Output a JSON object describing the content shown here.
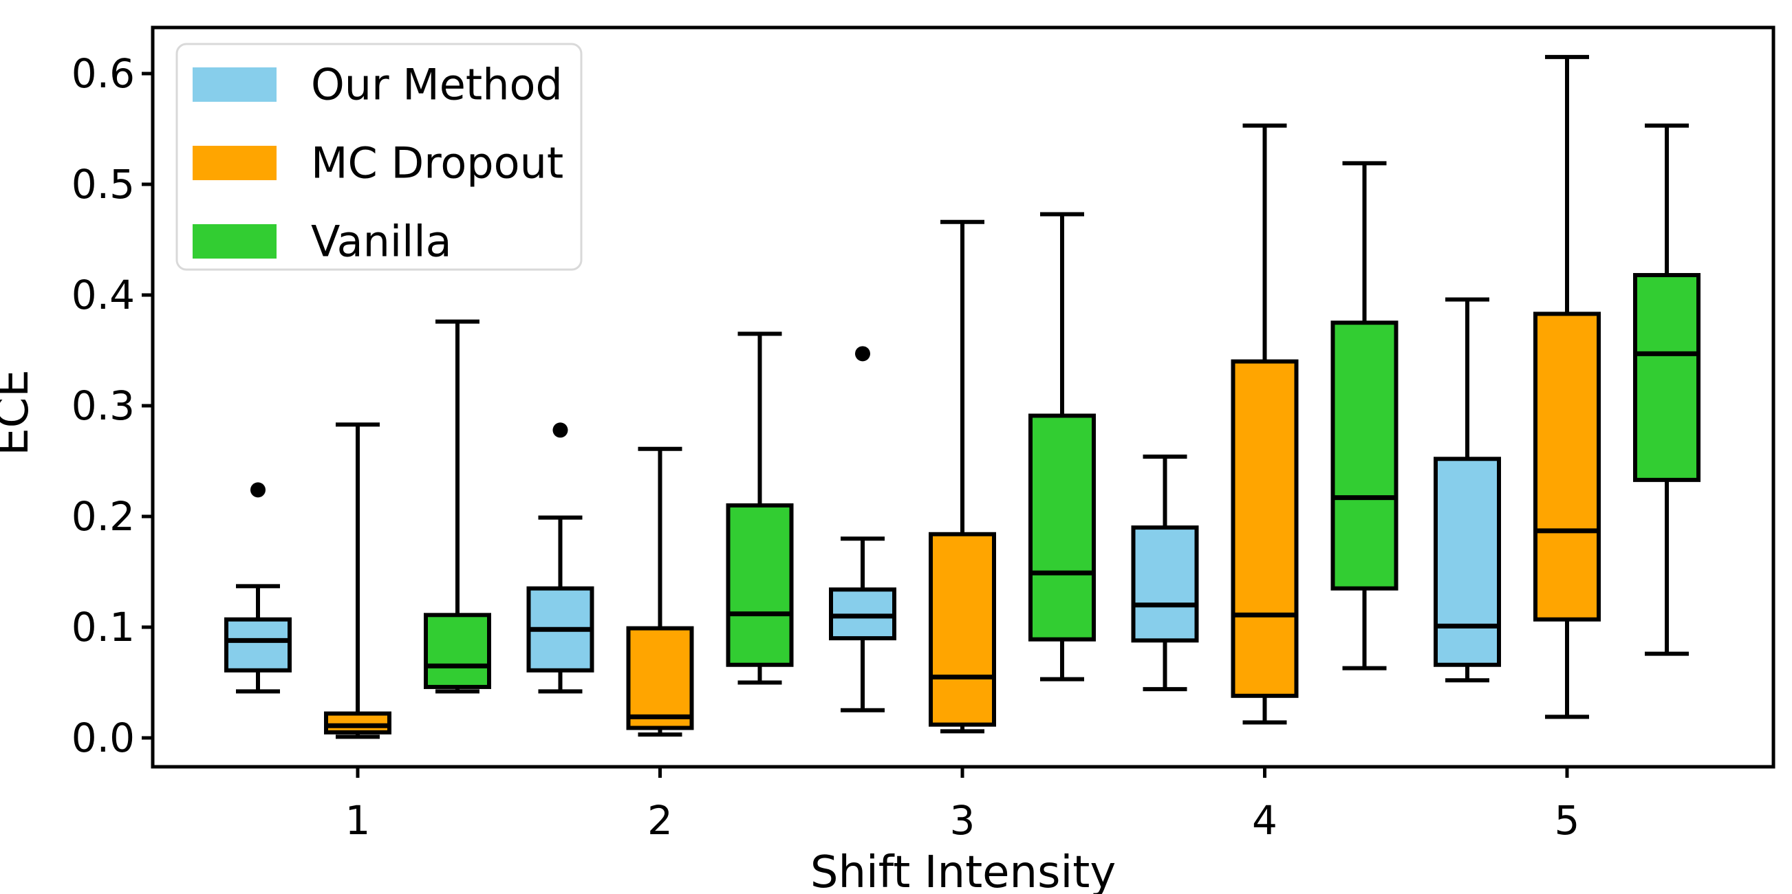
{
  "chart_data": {
    "type": "boxplot",
    "title": "",
    "xlabel": "Shift Intensity",
    "ylabel": "ECE",
    "categories": [
      "1",
      "2",
      "3",
      "4",
      "5"
    ],
    "yticks": [
      0.0,
      0.1,
      0.2,
      0.3,
      0.4,
      0.5,
      0.6
    ],
    "ytick_labels": [
      "0.0",
      "0.1",
      "0.2",
      "0.3",
      "0.4",
      "0.5",
      "0.6"
    ],
    "ylim": [
      -0.026,
      0.641
    ],
    "xlim_note": "5 groups, 3 boxes per group, boxes offset -0.33/0/+0.33 around each category",
    "grid": false,
    "legend_position": "upper left",
    "background_color": "#ffffff",
    "frame_color": "#000000",
    "series": [
      {
        "name": "Our Method",
        "color": "#87CEEB",
        "edge_color": "#000000",
        "boxes": [
          {
            "x": 1,
            "whislo": 0.042,
            "q1": 0.061,
            "med": 0.088,
            "q3": 0.107,
            "whishi": 0.137,
            "outliers": [
              0.224
            ]
          },
          {
            "x": 2,
            "whislo": 0.042,
            "q1": 0.061,
            "med": 0.098,
            "q3": 0.135,
            "whishi": 0.199,
            "outliers": [
              0.278
            ]
          },
          {
            "x": 3,
            "whislo": 0.025,
            "q1": 0.09,
            "med": 0.11,
            "q3": 0.134,
            "whishi": 0.18,
            "outliers": [
              0.347
            ]
          },
          {
            "x": 4,
            "whislo": 0.044,
            "q1": 0.088,
            "med": 0.12,
            "q3": 0.19,
            "whishi": 0.254,
            "outliers": []
          },
          {
            "x": 5,
            "whislo": 0.052,
            "q1": 0.066,
            "med": 0.101,
            "q3": 0.252,
            "whishi": 0.396,
            "outliers": []
          }
        ]
      },
      {
        "name": "MC Dropout",
        "color": "#FFA500",
        "edge_color": "#000000",
        "boxes": [
          {
            "x": 1,
            "whislo": 0.001,
            "q1": 0.005,
            "med": 0.011,
            "q3": 0.022,
            "whishi": 0.283,
            "outliers": []
          },
          {
            "x": 2,
            "whislo": 0.003,
            "q1": 0.009,
            "med": 0.019,
            "q3": 0.099,
            "whishi": 0.261,
            "outliers": []
          },
          {
            "x": 3,
            "whislo": 0.006,
            "q1": 0.012,
            "med": 0.055,
            "q3": 0.184,
            "whishi": 0.466,
            "outliers": []
          },
          {
            "x": 4,
            "whislo": 0.014,
            "q1": 0.038,
            "med": 0.111,
            "q3": 0.34,
            "whishi": 0.553,
            "outliers": []
          },
          {
            "x": 5,
            "whislo": 0.019,
            "q1": 0.107,
            "med": 0.187,
            "q3": 0.383,
            "whishi": 0.615,
            "outliers": []
          }
        ]
      },
      {
        "name": "Vanilla",
        "color": "#32CD32",
        "edge_color": "#000000",
        "boxes": [
          {
            "x": 1,
            "whislo": 0.042,
            "q1": 0.046,
            "med": 0.065,
            "q3": 0.111,
            "whishi": 0.376,
            "outliers": []
          },
          {
            "x": 2,
            "whislo": 0.05,
            "q1": 0.066,
            "med": 0.112,
            "q3": 0.21,
            "whishi": 0.365,
            "outliers": []
          },
          {
            "x": 3,
            "whislo": 0.053,
            "q1": 0.089,
            "med": 0.149,
            "q3": 0.291,
            "whishi": 0.473,
            "outliers": []
          },
          {
            "x": 4,
            "whislo": 0.063,
            "q1": 0.135,
            "med": 0.217,
            "q3": 0.375,
            "whishi": 0.519,
            "outliers": []
          },
          {
            "x": 5,
            "whislo": 0.076,
            "q1": 0.233,
            "med": 0.347,
            "q3": 0.418,
            "whishi": 0.553,
            "outliers": []
          }
        ]
      }
    ]
  }
}
